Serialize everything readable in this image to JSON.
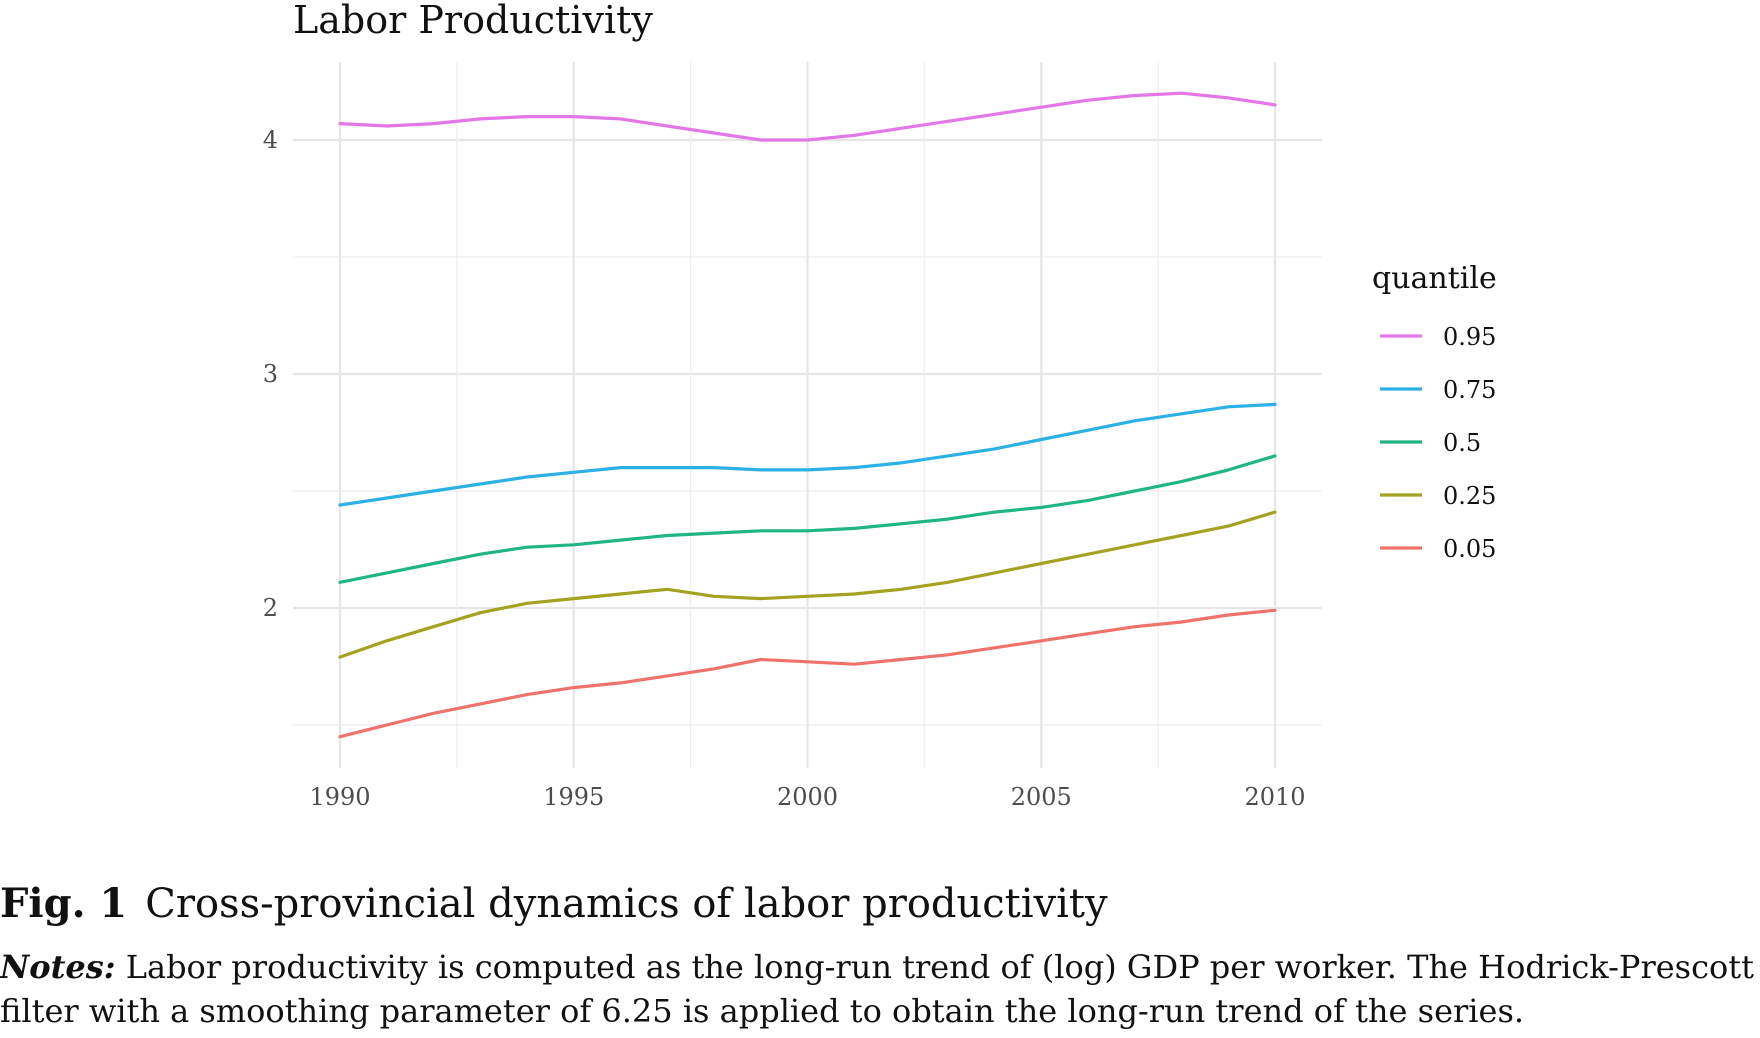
{
  "chart_data": {
    "type": "line",
    "title": "Labor Productivity",
    "xlabel": "",
    "ylabel": "",
    "x": [
      1990,
      1991,
      1992,
      1993,
      1994,
      1995,
      1996,
      1997,
      1998,
      1999,
      2000,
      2001,
      2002,
      2003,
      2004,
      2005,
      2006,
      2007,
      2008,
      2009,
      2010
    ],
    "xticks": [
      1990,
      1995,
      2000,
      2005,
      2010
    ],
    "yticks": [
      2,
      3,
      4
    ],
    "xlim": [
      1990,
      2010
    ],
    "ylim": [
      1.45,
      4.2
    ],
    "grid": true,
    "legend": {
      "title": "quantile",
      "placement": "right"
    },
    "series": [
      {
        "name": "0.95",
        "color": "#e377e8",
        "values": [
          4.07,
          4.06,
          4.07,
          4.09,
          4.1,
          4.1,
          4.09,
          4.06,
          4.03,
          4.0,
          4.0,
          4.02,
          4.05,
          4.08,
          4.11,
          4.14,
          4.17,
          4.19,
          4.2,
          4.18,
          4.15
        ]
      },
      {
        "name": "0.75",
        "color": "#2cb1e6",
        "values": [
          2.44,
          2.47,
          2.5,
          2.53,
          2.56,
          2.58,
          2.6,
          2.6,
          2.6,
          2.59,
          2.59,
          2.6,
          2.62,
          2.65,
          2.68,
          2.72,
          2.76,
          2.8,
          2.83,
          2.86,
          2.87
        ]
      },
      {
        "name": "0.5",
        "color": "#1fb584",
        "values": [
          2.11,
          2.15,
          2.19,
          2.23,
          2.26,
          2.27,
          2.29,
          2.31,
          2.32,
          2.33,
          2.33,
          2.34,
          2.36,
          2.38,
          2.41,
          2.43,
          2.46,
          2.5,
          2.54,
          2.59,
          2.65
        ]
      },
      {
        "name": "0.25",
        "color": "#a3a321",
        "values": [
          1.79,
          1.86,
          1.92,
          1.98,
          2.02,
          2.04,
          2.06,
          2.08,
          2.05,
          2.04,
          2.05,
          2.06,
          2.08,
          2.11,
          2.15,
          2.19,
          2.23,
          2.27,
          2.31,
          2.35,
          2.41
        ]
      },
      {
        "name": "0.05",
        "color": "#f0736b",
        "values": [
          1.45,
          1.5,
          1.55,
          1.59,
          1.63,
          1.66,
          1.68,
          1.71,
          1.74,
          1.78,
          1.77,
          1.76,
          1.78,
          1.8,
          1.83,
          1.86,
          1.89,
          1.92,
          1.94,
          1.97,
          1.99
        ]
      }
    ]
  },
  "caption": {
    "fig_label": "Fig. 1",
    "fig_title": "Cross-provincial dynamics of labor productivity",
    "notes_label": "Notes:",
    "notes_text": "Labor productivity is computed as the long-run trend of (log) GDP per worker. The Hodrick-Prescott filter with a smoothing parameter of 6.25 is applied to obtain the long-run trend of the series."
  }
}
